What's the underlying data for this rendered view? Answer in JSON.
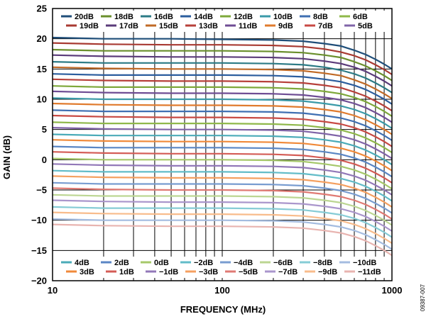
{
  "figure_id": "09387-007",
  "chart_data": {
    "type": "line",
    "xlabel": "FREQUENCY (MHz)",
    "ylabel": "GAIN (dB)",
    "x_scale": "log",
    "xlim": [
      10,
      1000
    ],
    "ylim": [
      -20,
      25
    ],
    "x_ticks": [
      10,
      100,
      1000
    ],
    "x_tick_labels": [
      "10",
      "100",
      "1000"
    ],
    "y_ticks": [
      -20,
      -15,
      -10,
      -5,
      0,
      5,
      10,
      15,
      20,
      25
    ],
    "y_tick_labels": [
      "−20",
      "−15",
      "−10",
      "−5",
      "0",
      "5",
      "10",
      "15",
      "20",
      "25"
    ],
    "grid": true,
    "legend_placement": [
      "top",
      "bottom"
    ],
    "x": [
      10,
      20,
      50,
      100,
      200,
      300,
      400,
      500,
      600,
      700,
      800,
      900,
      1000
    ],
    "series": [
      {
        "name": "20dB",
        "color": "#1f4e79",
        "values": [
          20.2,
          20.0,
          20.0,
          19.9,
          19.8,
          19.6,
          19.2,
          18.8,
          18.1,
          17.4,
          16.6,
          15.8,
          15.0
        ]
      },
      {
        "name": "19dB",
        "color": "#a83a32",
        "values": [
          19.3,
          19.1,
          19.0,
          19.0,
          18.9,
          18.7,
          18.3,
          17.8,
          17.2,
          16.5,
          15.7,
          14.9,
          14.1
        ]
      },
      {
        "name": "18dB",
        "color": "#6a8f2c",
        "values": [
          18.2,
          18.0,
          18.0,
          18.0,
          17.9,
          17.7,
          17.3,
          16.9,
          16.2,
          15.5,
          14.7,
          13.9,
          13.1
        ]
      },
      {
        "name": "17dB",
        "color": "#5b3b7a",
        "values": [
          17.3,
          17.1,
          17.0,
          17.0,
          16.9,
          16.7,
          16.3,
          15.9,
          15.3,
          14.6,
          13.8,
          13.0,
          12.2
        ]
      },
      {
        "name": "16dB",
        "color": "#2c7b86",
        "values": [
          16.2,
          16.0,
          16.0,
          16.0,
          15.9,
          15.7,
          15.3,
          14.8,
          14.2,
          13.5,
          12.7,
          11.9,
          11.1
        ]
      },
      {
        "name": "15dB",
        "color": "#c06a26",
        "values": [
          15.3,
          15.1,
          15.0,
          15.0,
          14.9,
          14.7,
          14.3,
          13.9,
          13.2,
          12.5,
          11.7,
          10.9,
          10.1
        ]
      },
      {
        "name": "14dB",
        "color": "#2b5d9e",
        "values": [
          14.2,
          14.0,
          14.0,
          14.0,
          13.9,
          13.7,
          13.3,
          12.9,
          12.3,
          11.6,
          10.8,
          10.0,
          9.2
        ]
      },
      {
        "name": "13dB",
        "color": "#b7403a",
        "values": [
          13.3,
          13.1,
          13.0,
          13.0,
          12.9,
          12.7,
          12.3,
          11.9,
          11.2,
          10.5,
          9.7,
          8.9,
          8.1
        ]
      },
      {
        "name": "12dB",
        "color": "#7ea83a",
        "values": [
          12.2,
          12.0,
          12.0,
          12.0,
          11.9,
          11.7,
          11.3,
          10.9,
          10.3,
          9.6,
          8.8,
          8.0,
          7.2
        ]
      },
      {
        "name": "11dB",
        "color": "#6f4d94",
        "values": [
          11.3,
          11.1,
          11.0,
          11.0,
          10.9,
          10.7,
          10.3,
          9.9,
          9.3,
          8.6,
          7.8,
          7.0,
          6.2
        ]
      },
      {
        "name": "10dB",
        "color": "#3a9aa8",
        "values": [
          10.2,
          10.0,
          10.0,
          10.0,
          9.9,
          9.7,
          9.3,
          8.9,
          8.3,
          7.6,
          6.8,
          6.0,
          5.2
        ]
      },
      {
        "name": "9dB",
        "color": "#e07b2e",
        "values": [
          9.3,
          9.1,
          9.0,
          9.0,
          8.9,
          8.7,
          8.3,
          7.9,
          7.3,
          6.6,
          5.8,
          5.0,
          4.2
        ]
      },
      {
        "name": "8dB",
        "color": "#3f6fb2",
        "values": [
          8.2,
          8.0,
          8.0,
          8.0,
          7.9,
          7.7,
          7.3,
          6.9,
          6.3,
          5.6,
          4.8,
          4.0,
          3.2
        ]
      },
      {
        "name": "7dB",
        "color": "#c84a44",
        "values": [
          7.3,
          7.1,
          7.0,
          7.0,
          6.9,
          6.7,
          6.3,
          5.9,
          5.3,
          4.6,
          3.8,
          3.0,
          2.2
        ]
      },
      {
        "name": "6dB",
        "color": "#8fb84a",
        "values": [
          6.2,
          6.0,
          6.0,
          6.0,
          5.9,
          5.7,
          5.3,
          4.9,
          4.3,
          3.6,
          2.8,
          2.0,
          1.2
        ]
      },
      {
        "name": "5dB",
        "color": "#8064a8",
        "values": [
          5.3,
          5.1,
          5.0,
          5.0,
          4.9,
          4.7,
          4.3,
          3.9,
          3.3,
          2.6,
          1.8,
          1.0,
          0.2
        ]
      },
      {
        "name": "4dB",
        "color": "#4aabb8",
        "values": [
          4.2,
          4.0,
          4.0,
          4.0,
          3.9,
          3.7,
          3.3,
          2.9,
          2.3,
          1.6,
          0.8,
          0.0,
          -0.8
        ]
      },
      {
        "name": "3dB",
        "color": "#f08a3a",
        "values": [
          3.3,
          3.1,
          3.0,
          3.0,
          2.9,
          2.7,
          2.3,
          1.9,
          1.3,
          0.6,
          -0.2,
          -1.0,
          -1.8
        ]
      },
      {
        "name": "2dB",
        "color": "#5a86c4",
        "values": [
          2.2,
          2.0,
          2.0,
          2.0,
          1.9,
          1.7,
          1.3,
          0.9,
          0.3,
          -0.4,
          -1.2,
          -2.0,
          -2.8
        ]
      },
      {
        "name": "1dB",
        "color": "#d45c56",
        "values": [
          1.3,
          1.1,
          1.0,
          1.0,
          0.9,
          0.7,
          0.3,
          -0.1,
          -0.7,
          -1.4,
          -2.2,
          -3.0,
          -3.8
        ]
      },
      {
        "name": "0dB",
        "color": "#a6c86a",
        "values": [
          0.2,
          0.0,
          0.0,
          0.0,
          -0.1,
          -0.3,
          -0.7,
          -1.1,
          -1.7,
          -2.4,
          -3.2,
          -4.0,
          -4.8
        ]
      },
      {
        "name": "−1dB",
        "color": "#9278b8",
        "values": [
          -0.7,
          -0.9,
          -1.0,
          -1.0,
          -1.1,
          -1.3,
          -1.7,
          -2.1,
          -2.7,
          -3.4,
          -4.2,
          -5.0,
          -5.8
        ]
      },
      {
        "name": "−2dB",
        "color": "#62bcc8",
        "values": [
          -1.8,
          -2.0,
          -2.0,
          -2.0,
          -2.1,
          -2.3,
          -2.7,
          -3.1,
          -3.7,
          -4.4,
          -5.2,
          -6.0,
          -6.8
        ]
      },
      {
        "name": "−3dB",
        "color": "#f5a060",
        "values": [
          -2.7,
          -2.9,
          -3.0,
          -3.0,
          -3.1,
          -3.3,
          -3.7,
          -4.1,
          -4.7,
          -5.4,
          -6.2,
          -7.0,
          -7.8
        ]
      },
      {
        "name": "−4dB",
        "color": "#789cd0",
        "values": [
          -3.8,
          -4.0,
          -4.0,
          -4.0,
          -4.1,
          -4.3,
          -4.7,
          -5.1,
          -5.7,
          -6.4,
          -7.2,
          -8.0,
          -8.8
        ]
      },
      {
        "name": "−5dB",
        "color": "#e07a74",
        "values": [
          -4.7,
          -4.9,
          -5.0,
          -5.0,
          -5.1,
          -5.3,
          -5.7,
          -6.1,
          -6.7,
          -7.4,
          -8.2,
          -9.0,
          -9.8
        ]
      },
      {
        "name": "−6dB",
        "color": "#bcd692",
        "values": [
          -5.8,
          -6.0,
          -6.0,
          -6.0,
          -6.1,
          -6.3,
          -6.7,
          -7.1,
          -7.7,
          -8.4,
          -9.2,
          -10.0,
          -10.8
        ]
      },
      {
        "name": "−7dB",
        "color": "#aa96cc",
        "values": [
          -6.7,
          -6.9,
          -7.0,
          -7.0,
          -7.1,
          -7.3,
          -7.7,
          -8.1,
          -8.7,
          -9.4,
          -10.2,
          -11.0,
          -11.8
        ]
      },
      {
        "name": "−8dB",
        "color": "#86ccd6",
        "values": [
          -7.8,
          -8.0,
          -8.0,
          -8.0,
          -8.1,
          -8.3,
          -8.7,
          -9.1,
          -9.7,
          -10.4,
          -11.2,
          -12.0,
          -12.8
        ]
      },
      {
        "name": "−9dB",
        "color": "#f8bc8c",
        "values": [
          -8.7,
          -8.9,
          -9.0,
          -9.0,
          -9.1,
          -9.3,
          -9.7,
          -10.1,
          -10.7,
          -11.4,
          -12.2,
          -13.0,
          -13.8
        ]
      },
      {
        "name": "−10dB",
        "color": "#a4bce0",
        "values": [
          -9.8,
          -10.0,
          -10.0,
          -10.0,
          -10.1,
          -10.3,
          -10.7,
          -11.1,
          -11.7,
          -12.4,
          -13.2,
          -14.0,
          -14.8
        ]
      },
      {
        "name": "−11dB",
        "color": "#e8b4b0",
        "values": [
          -10.7,
          -10.9,
          -11.0,
          -11.0,
          -11.1,
          -11.3,
          -11.7,
          -12.1,
          -12.7,
          -13.4,
          -14.2,
          -15.0,
          -15.8
        ]
      }
    ]
  }
}
